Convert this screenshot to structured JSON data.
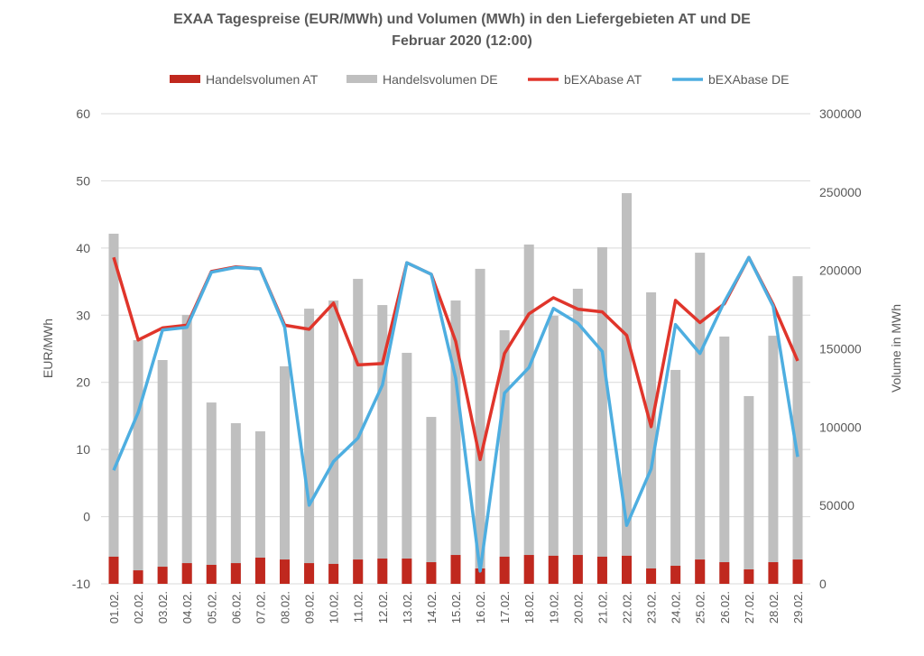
{
  "chart_data": {
    "type": "bar+line",
    "title": [
      "EXAA Tagespreise (EUR/MWh) und Volumen (MWh) in den Liefergebieten AT und DE",
      "Februar 2020 (12:00)"
    ],
    "ylabel": "EUR/MWh",
    "y2label": "Volume in MWh",
    "ylim": [
      -10,
      60
    ],
    "y2lim": [
      0,
      300000
    ],
    "yticks": [
      "60",
      "50",
      "40",
      "30",
      "20",
      "10",
      "0",
      "-10"
    ],
    "y2ticks": [
      "300000",
      "250000",
      "200000",
      "150000",
      "100000",
      "50000",
      "0"
    ],
    "grid": true,
    "legend_position": "top",
    "categories": [
      "01.02.",
      "02.02.",
      "03.02.",
      "04.02.",
      "05.02.",
      "06.02.",
      "07.02.",
      "08.02.",
      "09.02.",
      "10.02.",
      "11.02.",
      "12.02.",
      "13.02.",
      "14.02.",
      "15.02.",
      "16.02.",
      "17.02.",
      "18.02.",
      "19.02.",
      "20.02.",
      "21.02.",
      "22.02.",
      "23.02.",
      "24.02.",
      "25.02.",
      "26.02.",
      "27.02.",
      "28.02.",
      "29.02."
    ],
    "series": [
      {
        "name": "Handelsvolumen AT",
        "kind": "bar",
        "axis": "right",
        "color": "#c0281e",
        "values": [
          17300,
          8600,
          10900,
          13200,
          12100,
          13200,
          16700,
          15500,
          13200,
          12700,
          15500,
          16100,
          16100,
          13800,
          18400,
          9800,
          17300,
          18400,
          17900,
          18400,
          17300,
          17900,
          9800,
          11500,
          15500,
          13800,
          9200,
          13800,
          15500
        ]
      },
      {
        "name": "Handelsvolumen DE",
        "kind": "bar",
        "axis": "right",
        "color": "#bfbfbf",
        "values": [
          223400,
          155500,
          142800,
          171600,
          115700,
          102500,
          97300,
          138800,
          175600,
          180800,
          194600,
          177900,
          147400,
          106500,
          180800,
          201000,
          161800,
          216500,
          171000,
          188300,
          214800,
          249300,
          186000,
          136500,
          211300,
          157800,
          119800,
          158300,
          196300
        ]
      },
      {
        "name": "bEXAbase AT",
        "kind": "line",
        "axis": "left",
        "color": "#e0352b",
        "values": [
          38.6,
          26.3,
          28.1,
          28.5,
          36.5,
          37.2,
          36.9,
          28.5,
          27.9,
          31.8,
          22.6,
          22.8,
          37.8,
          36.1,
          26.1,
          8.5,
          24.3,
          30.2,
          32.6,
          30.9,
          30.5,
          27.0,
          13.4,
          32.2,
          28.9,
          31.7,
          38.6,
          31.6,
          23.2
        ]
      },
      {
        "name": "bEXAbase DE",
        "kind": "line",
        "axis": "left",
        "color": "#4eaee0",
        "values": [
          6.9,
          15.5,
          27.8,
          28.2,
          36.4,
          37.1,
          36.9,
          28.2,
          1.7,
          8.2,
          11.7,
          19.6,
          37.8,
          36.1,
          20.6,
          -8.1,
          18.4,
          22.2,
          31.0,
          28.8,
          24.6,
          -1.3,
          7.1,
          28.6,
          24.3,
          32.0,
          38.6,
          31.3,
          8.9
        ]
      }
    ]
  }
}
